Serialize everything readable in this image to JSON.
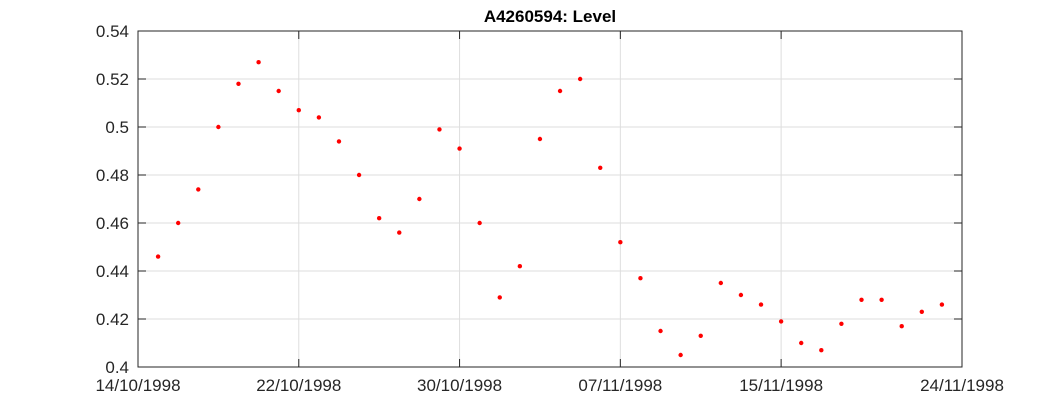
{
  "chart_data": {
    "type": "scatter",
    "title": "A4260594: Level",
    "xlabel": "",
    "ylabel": "",
    "xlim": [
      "14/10/1998",
      "24/11/1998"
    ],
    "ylim": [
      0.4,
      0.54
    ],
    "grid": true,
    "x_ticks": [
      "14/10/1998",
      "22/10/1998",
      "30/10/1998",
      "07/11/1998",
      "15/11/1998",
      "24/11/1998"
    ],
    "y_ticks": [
      "0.4",
      "0.42",
      "0.44",
      "0.46",
      "0.48",
      "0.5",
      "0.52",
      "0.54"
    ],
    "marker_color": "#ff0000",
    "points": [
      {
        "x": "15/10/1998",
        "y": 0.446
      },
      {
        "x": "16/10/1998",
        "y": 0.46
      },
      {
        "x": "17/10/1998",
        "y": 0.474
      },
      {
        "x": "18/10/1998",
        "y": 0.5
      },
      {
        "x": "19/10/1998",
        "y": 0.518
      },
      {
        "x": "20/10/1998",
        "y": 0.527
      },
      {
        "x": "21/10/1998",
        "y": 0.515
      },
      {
        "x": "22/10/1998",
        "y": 0.507
      },
      {
        "x": "23/10/1998",
        "y": 0.504
      },
      {
        "x": "24/10/1998",
        "y": 0.494
      },
      {
        "x": "25/10/1998",
        "y": 0.48
      },
      {
        "x": "26/10/1998",
        "y": 0.462
      },
      {
        "x": "27/10/1998",
        "y": 0.456
      },
      {
        "x": "28/10/1998",
        "y": 0.47
      },
      {
        "x": "29/10/1998",
        "y": 0.499
      },
      {
        "x": "30/10/1998",
        "y": 0.491
      },
      {
        "x": "31/10/1998",
        "y": 0.46
      },
      {
        "x": "01/11/1998",
        "y": 0.429
      },
      {
        "x": "02/11/1998",
        "y": 0.442
      },
      {
        "x": "03/11/1998",
        "y": 0.495
      },
      {
        "x": "04/11/1998",
        "y": 0.515
      },
      {
        "x": "05/11/1998",
        "y": 0.52
      },
      {
        "x": "06/11/1998",
        "y": 0.483
      },
      {
        "x": "07/11/1998",
        "y": 0.452
      },
      {
        "x": "08/11/1998",
        "y": 0.437
      },
      {
        "x": "09/11/1998",
        "y": 0.415
      },
      {
        "x": "10/11/1998",
        "y": 0.405
      },
      {
        "x": "11/11/1998",
        "y": 0.413
      },
      {
        "x": "12/11/1998",
        "y": 0.435
      },
      {
        "x": "13/11/1998",
        "y": 0.43
      },
      {
        "x": "14/11/1998",
        "y": 0.426
      },
      {
        "x": "15/11/1998",
        "y": 0.419
      },
      {
        "x": "16/11/1998",
        "y": 0.41
      },
      {
        "x": "17/11/1998",
        "y": 0.407
      },
      {
        "x": "18/11/1998",
        "y": 0.418
      },
      {
        "x": "19/11/1998",
        "y": 0.428
      },
      {
        "x": "20/11/1998",
        "y": 0.428
      },
      {
        "x": "21/11/1998",
        "y": 0.417
      },
      {
        "x": "22/11/1998",
        "y": 0.423
      },
      {
        "x": "23/11/1998",
        "y": 0.426
      }
    ]
  }
}
